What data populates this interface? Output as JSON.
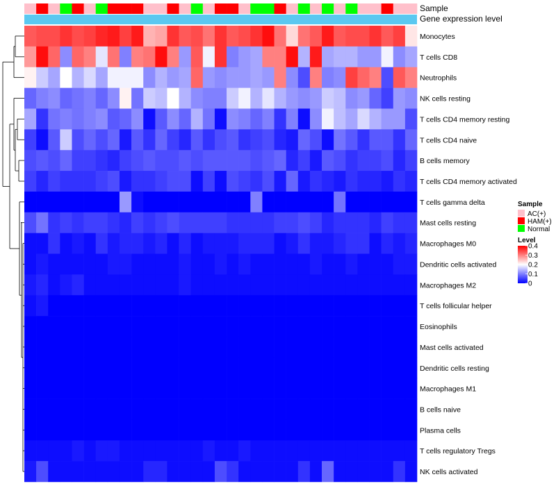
{
  "chart_data": {
    "type": "heatmap",
    "annotation_tracks": [
      "Sample",
      "Gene expression level"
    ],
    "sample_groups": [
      "AC(+)",
      "HAM(+)",
      "Normal"
    ],
    "sample_group_colors": {
      "AC(+)": "#FFC0CB",
      "HAM(+)": "#FF0000",
      "Normal": "#00FF00"
    },
    "gene_expression_color": "#5BC8F0",
    "samples": [
      "AC(+)",
      "HAM(+)",
      "AC(+)",
      "Normal",
      "HAM(+)",
      "AC(+)",
      "Normal",
      "HAM(+)",
      "HAM(+)",
      "HAM(+)",
      "AC(+)",
      "AC(+)",
      "HAM(+)",
      "AC(+)",
      "Normal",
      "AC(+)",
      "HAM(+)",
      "HAM(+)",
      "AC(+)",
      "Normal",
      "Normal",
      "HAM(+)",
      "AC(+)",
      "Normal",
      "AC(+)",
      "Normal",
      "AC(+)",
      "Normal",
      "AC(+)",
      "AC(+)",
      "HAM(+)",
      "AC(+)",
      "AC(+)"
    ],
    "rows": [
      "Monocytes",
      "T cells CD8",
      "Neutrophils",
      "NK cells resting",
      "T cells CD4 memory resting",
      "T cells CD4 naive",
      "B cells memory",
      "T cells CD4 memory activated",
      "T cells gamma delta",
      "Mast cells resting",
      "Macrophages M0",
      "Dendritic cells activated",
      "Macrophages M2",
      "T cells follicular helper",
      "Eosinophils",
      "Mast cells activated",
      "Dendritic cells resting",
      "Macrophages M1",
      "B cells naive",
      "Plasma cells",
      "T cells regulatory  Tregs",
      "NK cells activated"
    ],
    "values": [
      [
        0.33,
        0.34,
        0.34,
        0.36,
        0.34,
        0.35,
        0.37,
        0.38,
        0.35,
        0.38,
        0.26,
        0.27,
        0.36,
        0.33,
        0.34,
        0.31,
        0.36,
        0.33,
        0.34,
        0.36,
        0.39,
        0.31,
        0.23,
        0.31,
        0.33,
        0.38,
        0.33,
        0.34,
        0.34,
        0.36,
        0.33,
        0.35,
        0.22
      ],
      [
        0.28,
        0.39,
        0.32,
        0.11,
        0.32,
        0.3,
        0.18,
        0.31,
        0.1,
        0.3,
        0.31,
        0.39,
        0.3,
        0.12,
        0.33,
        0.19,
        0.36,
        0.1,
        0.12,
        0.13,
        0.3,
        0.3,
        0.39,
        0.14,
        0.38,
        0.13,
        0.14,
        0.14,
        0.12,
        0.12,
        0.19,
        0.11,
        0.13
      ],
      [
        0.21,
        0.16,
        0.13,
        0.2,
        0.14,
        0.17,
        0.13,
        0.19,
        0.19,
        0.19,
        0.11,
        0.14,
        0.12,
        0.13,
        0.32,
        0.12,
        0.11,
        0.12,
        0.12,
        0.13,
        0.12,
        0.3,
        0.11,
        0.06,
        0.3,
        0.1,
        0.11,
        0.35,
        0.32,
        0.3,
        0.06,
        0.33,
        0.3
      ],
      [
        0.08,
        0.1,
        0.11,
        0.08,
        0.09,
        0.1,
        0.08,
        0.11,
        0.21,
        0.09,
        0.16,
        0.15,
        0.2,
        0.14,
        0.11,
        0.1,
        0.1,
        0.16,
        0.19,
        0.14,
        0.18,
        0.14,
        0.12,
        0.11,
        0.12,
        0.16,
        0.15,
        0.11,
        0.12,
        0.08,
        0.05,
        0.12,
        0.11
      ],
      [
        0.13,
        0.04,
        0.09,
        0.1,
        0.09,
        0.1,
        0.11,
        0.07,
        0.08,
        0.11,
        0.01,
        0.07,
        0.11,
        0.08,
        0.14,
        0.09,
        0.01,
        0.11,
        0.1,
        0.08,
        0.1,
        0.04,
        0.1,
        0.01,
        0.11,
        0.19,
        0.15,
        0.13,
        0.17,
        0.14,
        0.12,
        0.12,
        0.06
      ],
      [
        0.05,
        0.01,
        0.07,
        0.16,
        0.06,
        0.08,
        0.06,
        0.08,
        0.02,
        0.07,
        0.04,
        0.08,
        0.05,
        0.03,
        0.07,
        0.04,
        0.06,
        0.07,
        0.04,
        0.05,
        0.06,
        0.03,
        0.02,
        0.08,
        0.06,
        0.01,
        0.09,
        0.07,
        0.04,
        0.07,
        0.07,
        0.04,
        0.08
      ],
      [
        0.06,
        0.07,
        0.06,
        0.08,
        0.05,
        0.05,
        0.04,
        0.03,
        0.05,
        0.06,
        0.07,
        0.06,
        0.06,
        0.07,
        0.06,
        0.07,
        0.07,
        0.07,
        0.07,
        0.06,
        0.07,
        0.08,
        0.03,
        0.05,
        0.02,
        0.07,
        0.06,
        0.04,
        0.05,
        0.05,
        0.06,
        0.03,
        0.05
      ],
      [
        0.05,
        0.03,
        0.05,
        0.04,
        0.04,
        0.04,
        0.05,
        0.06,
        0.02,
        0.04,
        0.04,
        0.05,
        0.06,
        0.06,
        0.01,
        0.05,
        0.01,
        0.06,
        0.05,
        0.04,
        0.06,
        0.02,
        0.08,
        0.02,
        0.04,
        0.03,
        0.02,
        0.04,
        0.03,
        0.03,
        0.02,
        0.04,
        0.03
      ],
      [
        0.0,
        0.0,
        0.0,
        0.0,
        0.0,
        0.0,
        0.0,
        0.0,
        0.12,
        0.01,
        0.0,
        0.0,
        0.0,
        0.0,
        0.0,
        0.0,
        0.0,
        0.0,
        0.0,
        0.1,
        0.0,
        0.0,
        0.0,
        0.0,
        0.0,
        0.0,
        0.09,
        0.0,
        0.0,
        0.0,
        0.0,
        0.0,
        0.0
      ],
      [
        0.06,
        0.09,
        0.04,
        0.05,
        0.04,
        0.05,
        0.05,
        0.04,
        0.03,
        0.05,
        0.04,
        0.05,
        0.06,
        0.05,
        0.05,
        0.05,
        0.05,
        0.04,
        0.04,
        0.04,
        0.04,
        0.05,
        0.05,
        0.06,
        0.05,
        0.03,
        0.04,
        0.04,
        0.04,
        0.03,
        0.05,
        0.04,
        0.04
      ],
      [
        0.01,
        0.01,
        0.04,
        0.01,
        0.02,
        0.01,
        0.04,
        0.02,
        0.03,
        0.03,
        0.02,
        0.03,
        0.01,
        0.03,
        0.01,
        0.02,
        0.02,
        0.02,
        0.03,
        0.03,
        0.03,
        0.01,
        0.02,
        0.04,
        0.02,
        0.02,
        0.03,
        0.04,
        0.04,
        0.01,
        0.03,
        0.02,
        0.03
      ],
      [
        0.01,
        0.02,
        0.01,
        0.01,
        0.01,
        0.01,
        0.01,
        0.02,
        0.02,
        0.01,
        0.01,
        0.01,
        0.01,
        0.02,
        0.01,
        0.01,
        0.02,
        0.01,
        0.02,
        0.01,
        0.01,
        0.01,
        0.01,
        0.01,
        0.02,
        0.01,
        0.01,
        0.02,
        0.01,
        0.01,
        0.01,
        0.02,
        0.02
      ],
      [
        0.02,
        0.03,
        0.01,
        0.02,
        0.03,
        0.01,
        0.01,
        0.01,
        0.01,
        0.01,
        0.01,
        0.01,
        0.01,
        0.02,
        0.01,
        0.01,
        0.01,
        0.01,
        0.01,
        0.01,
        0.01,
        0.01,
        0.01,
        0.01,
        0.01,
        0.01,
        0.01,
        0.01,
        0.01,
        0.01,
        0.01,
        0.01,
        0.01
      ],
      [
        0.01,
        0.02,
        0.0,
        0.0,
        0.0,
        0.0,
        0.0,
        0.0,
        0.0,
        0.0,
        0.0,
        0.0,
        0.0,
        0.0,
        0.0,
        0.0,
        0.0,
        0.0,
        0.0,
        0.0,
        0.0,
        0.0,
        0.0,
        0.0,
        0.0,
        0.0,
        0.0,
        0.0,
        0.0,
        0.0,
        0.0,
        0.0,
        0.0
      ],
      [
        0.0,
        0.0,
        0.0,
        0.0,
        0.0,
        0.0,
        0.0,
        0.0,
        0.0,
        0.0,
        0.0,
        0.0,
        0.0,
        0.0,
        0.0,
        0.0,
        0.0,
        0.0,
        0.0,
        0.0,
        0.0,
        0.0,
        0.0,
        0.0,
        0.0,
        0.0,
        0.0,
        0.0,
        0.0,
        0.0,
        0.0,
        0.0,
        0.0
      ],
      [
        0.0,
        0.0,
        0.0,
        0.0,
        0.0,
        0.0,
        0.0,
        0.0,
        0.0,
        0.0,
        0.0,
        0.0,
        0.0,
        0.0,
        0.0,
        0.0,
        0.0,
        0.0,
        0.0,
        0.0,
        0.0,
        0.0,
        0.0,
        0.0,
        0.0,
        0.0,
        0.0,
        0.0,
        0.0,
        0.0,
        0.0,
        0.0,
        0.0
      ],
      [
        0.0,
        0.0,
        0.0,
        0.0,
        0.0,
        0.0,
        0.0,
        0.0,
        0.0,
        0.0,
        0.0,
        0.0,
        0.0,
        0.0,
        0.0,
        0.0,
        0.0,
        0.0,
        0.0,
        0.0,
        0.0,
        0.0,
        0.0,
        0.0,
        0.0,
        0.0,
        0.0,
        0.0,
        0.0,
        0.0,
        0.0,
        0.0,
        0.0
      ],
      [
        0.0,
        0.0,
        0.0,
        0.0,
        0.0,
        0.0,
        0.0,
        0.0,
        0.0,
        0.0,
        0.0,
        0.0,
        0.0,
        0.0,
        0.0,
        0.0,
        0.0,
        0.0,
        0.0,
        0.0,
        0.0,
        0.0,
        0.0,
        0.0,
        0.0,
        0.0,
        0.0,
        0.0,
        0.0,
        0.0,
        0.0,
        0.0,
        0.0
      ],
      [
        0.0,
        0.0,
        0.0,
        0.0,
        0.0,
        0.0,
        0.0,
        0.0,
        0.0,
        0.0,
        0.0,
        0.0,
        0.0,
        0.0,
        0.0,
        0.0,
        0.0,
        0.0,
        0.0,
        0.0,
        0.0,
        0.0,
        0.0,
        0.0,
        0.0,
        0.0,
        0.0,
        0.0,
        0.0,
        0.0,
        0.0,
        0.0,
        0.0
      ],
      [
        0.0,
        0.0,
        0.0,
        0.0,
        0.0,
        0.0,
        0.0,
        0.0,
        0.0,
        0.0,
        0.0,
        0.0,
        0.0,
        0.0,
        0.0,
        0.0,
        0.0,
        0.0,
        0.0,
        0.0,
        0.0,
        0.0,
        0.0,
        0.0,
        0.0,
        0.0,
        0.0,
        0.0,
        0.0,
        0.0,
        0.0,
        0.0,
        0.0
      ],
      [
        0.01,
        0.01,
        0.01,
        0.01,
        0.02,
        0.01,
        0.02,
        0.02,
        0.01,
        0.01,
        0.01,
        0.01,
        0.01,
        0.01,
        0.01,
        0.02,
        0.01,
        0.01,
        0.02,
        0.01,
        0.01,
        0.01,
        0.01,
        0.01,
        0.01,
        0.01,
        0.01,
        0.01,
        0.01,
        0.01,
        0.01,
        0.01,
        0.01
      ],
      [
        0.02,
        0.06,
        0.01,
        0.01,
        0.01,
        0.01,
        0.01,
        0.01,
        0.01,
        0.01,
        0.03,
        0.03,
        0.01,
        0.01,
        0.01,
        0.01,
        0.06,
        0.04,
        0.01,
        0.01,
        0.01,
        0.01,
        0.01,
        0.04,
        0.01,
        0.08,
        0.01,
        0.01,
        0.01,
        0.01,
        0.01,
        0.04,
        0.01
      ]
    ],
    "color_scale": {
      "min": 0,
      "max": 0.4,
      "stops": [
        {
          "value": 0,
          "color": "#0000FF"
        },
        {
          "value": 0.2,
          "color": "#FFFFFF"
        },
        {
          "value": 0.4,
          "color": "#FF0000"
        }
      ]
    },
    "legend_sample": {
      "title": "Sample",
      "entries": [
        "AC(+)",
        "HAM(+)",
        "Normal"
      ]
    },
    "legend_level": {
      "title": "Level",
      "ticks": [
        "0.4",
        "0.3",
        "0.2",
        "0.1",
        "0"
      ]
    },
    "dendrogram": "row"
  }
}
